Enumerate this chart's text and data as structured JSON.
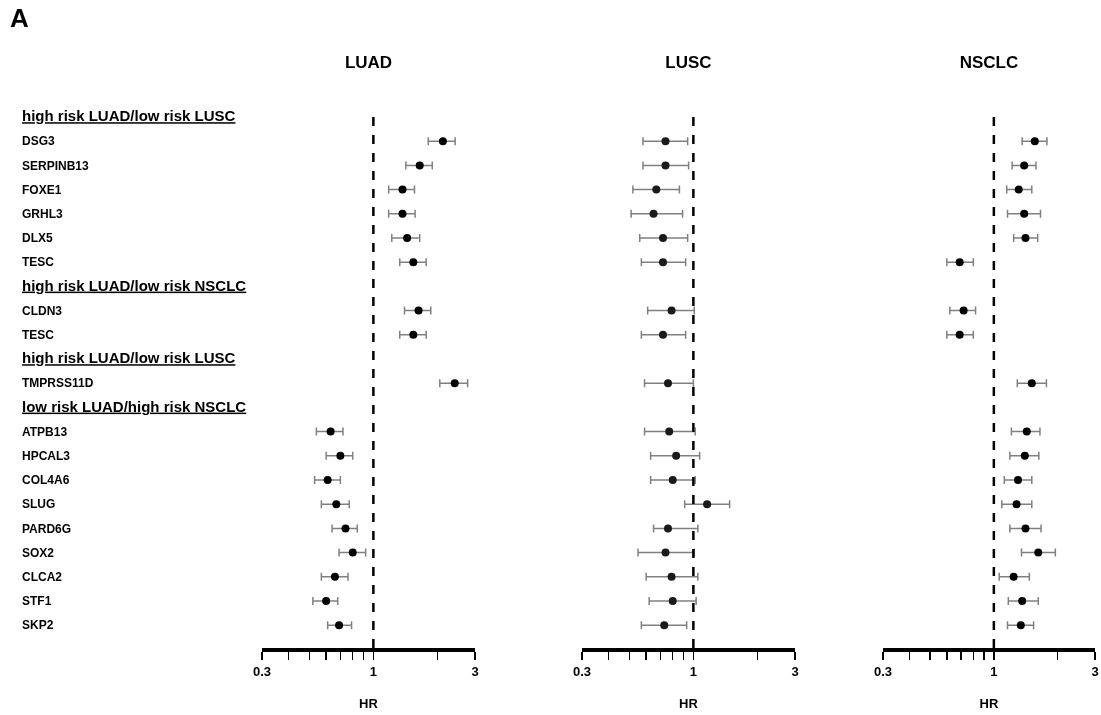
{
  "chart_data": [
    {
      "type": "scatter",
      "orientation": "horizontal",
      "title": "LUAD",
      "xlabel": "HR",
      "annotations": [
        "A"
      ],
      "log": "x",
      "grid": false,
      "marker": "circle",
      "color": "#000000",
      "categories": [
        "high risk LUAD/low risk LUSC",
        "DSG3",
        "SERPINB13",
        "FOXE1",
        "GRHL3",
        "DLX5",
        "TESC",
        "high risk LUAD/low risk NSCLC",
        "CLDN3",
        "TESC",
        "high risk LUAD/low risk LUSC",
        "TMPRSS11D",
        "low risk LUAD/high risk NSCLC",
        "ATPB13",
        "HPCAL3",
        "COL4A6",
        "SLUG",
        "PARD6G",
        "SOX2",
        "CLCA2",
        "STF1",
        "SKP2"
      ],
      "values": [
        null,
        2.12,
        1.65,
        1.37,
        1.37,
        1.44,
        1.54,
        null,
        1.63,
        1.54,
        null,
        2.41,
        null,
        0.63,
        0.7,
        0.61,
        0.67,
        0.74,
        0.8,
        0.66,
        0.6,
        0.69
      ],
      "errors": [
        null,
        [
          1.81,
          2.42
        ],
        [
          1.42,
          1.89
        ],
        [
          1.18,
          1.56
        ],
        [
          1.18,
          1.57
        ],
        [
          1.22,
          1.65
        ],
        [
          1.33,
          1.77
        ],
        null,
        [
          1.4,
          1.86
        ],
        [
          1.33,
          1.77
        ],
        null,
        [
          2.05,
          2.77
        ],
        null,
        [
          0.54,
          0.72
        ],
        [
          0.6,
          0.8
        ],
        [
          0.53,
          0.7
        ],
        [
          0.57,
          0.77
        ],
        [
          0.64,
          0.84
        ],
        [
          0.69,
          0.92
        ],
        [
          0.57,
          0.76
        ],
        [
          0.52,
          0.68
        ],
        [
          0.61,
          0.79
        ]
      ],
      "xlim": [
        0.3,
        3
      ],
      "xticks": [
        0.3,
        {
          "value": 0.4,
          "label": null
        },
        {
          "value": 0.5,
          "label": null
        },
        {
          "value": 0.6,
          "label": null
        },
        {
          "value": 0.7,
          "label": null
        },
        {
          "value": 0.8,
          "label": null
        },
        {
          "value": 0.9,
          "label": null
        },
        1,
        {
          "value": 2,
          "label": null
        },
        3
      ],
      "ref_lines": [
        {
          "axis": "x",
          "value": 1,
          "line_style": "dashed",
          "color": "#000000"
        }
      ]
    },
    {
      "type": "scatter",
      "orientation": "horizontal",
      "title": "LUSC",
      "xlabel": "HR",
      "log": "x",
      "grid": false,
      "marker": "circle",
      "color": "#1a1a1a",
      "tick_labels": "x",
      "values": [
        null,
        0.74,
        0.74,
        0.67,
        0.65,
        0.72,
        0.72,
        null,
        0.79,
        0.72,
        null,
        0.76,
        null,
        0.77,
        0.83,
        0.8,
        1.16,
        0.76,
        0.74,
        0.79,
        0.8,
        0.73
      ],
      "errors": [
        null,
        [
          0.58,
          0.94
        ],
        [
          0.58,
          0.95
        ],
        [
          0.52,
          0.86
        ],
        [
          0.51,
          0.89
        ],
        [
          0.56,
          0.94
        ],
        [
          0.57,
          0.92
        ],
        null,
        [
          0.61,
          1.01
        ],
        [
          0.57,
          0.92
        ],
        null,
        [
          0.59,
          1.0
        ],
        null,
        [
          0.59,
          1.02
        ],
        [
          0.63,
          1.07
        ],
        [
          0.63,
          1.02
        ],
        [
          0.91,
          1.48
        ],
        [
          0.65,
          1.05
        ],
        [
          0.55,
          1.01
        ],
        [
          0.6,
          1.05
        ],
        [
          0.62,
          1.03
        ],
        [
          0.57,
          0.93
        ]
      ],
      "xlim": [
        0.3,
        3
      ],
      "xticks": [
        0.3,
        {
          "value": 0.4,
          "label": null
        },
        {
          "value": 0.5,
          "label": null
        },
        {
          "value": 0.6,
          "label": null
        },
        {
          "value": 0.7,
          "label": null
        },
        {
          "value": 0.8,
          "label": null
        },
        {
          "value": 0.9,
          "label": null
        },
        1,
        {
          "value": 2,
          "label": null
        },
        3
      ],
      "ref_lines": [
        {
          "axis": "x",
          "value": 1,
          "line_style": "dashed",
          "color": "#000000"
        }
      ]
    },
    {
      "type": "scatter",
      "orientation": "horizontal",
      "title": "NSCLC",
      "xlabel": "HR",
      "log": "x",
      "grid": false,
      "marker": "circle",
      "color": "#000000",
      "tick_labels": "x",
      "values": [
        null,
        1.56,
        1.39,
        1.31,
        1.39,
        1.41,
        0.69,
        null,
        0.72,
        0.69,
        null,
        1.51,
        null,
        1.43,
        1.4,
        1.3,
        1.28,
        1.41,
        1.62,
        1.24,
        1.36,
        1.34
      ],
      "errors": [
        null,
        [
          1.36,
          1.78
        ],
        [
          1.22,
          1.58
        ],
        [
          1.15,
          1.51
        ],
        [
          1.16,
          1.66
        ],
        [
          1.24,
          1.61
        ],
        [
          0.6,
          0.8
        ],
        null,
        [
          0.62,
          0.82
        ],
        [
          0.6,
          0.8
        ],
        null,
        [
          1.29,
          1.77
        ],
        null,
        [
          1.21,
          1.65
        ],
        [
          1.19,
          1.63
        ],
        [
          1.12,
          1.51
        ],
        [
          1.09,
          1.51
        ],
        [
          1.19,
          1.67
        ],
        [
          1.35,
          1.95
        ],
        [
          1.06,
          1.47
        ],
        [
          1.17,
          1.62
        ],
        [
          1.16,
          1.54
        ]
      ],
      "xlim": [
        0.3,
        3
      ],
      "xticks": [
        0.3,
        {
          "value": 0.4,
          "label": null
        },
        {
          "value": 0.5,
          "label": null
        },
        {
          "value": 0.6,
          "label": null
        },
        {
          "value": 0.7,
          "label": null
        },
        {
          "value": 0.8,
          "label": null
        },
        {
          "value": 0.9,
          "label": null
        },
        1,
        {
          "value": 2,
          "label": null
        },
        3
      ],
      "ref_lines": [
        {
          "axis": "x",
          "value": 1,
          "line_style": "dashed",
          "color": "#000000"
        }
      ]
    }
  ]
}
